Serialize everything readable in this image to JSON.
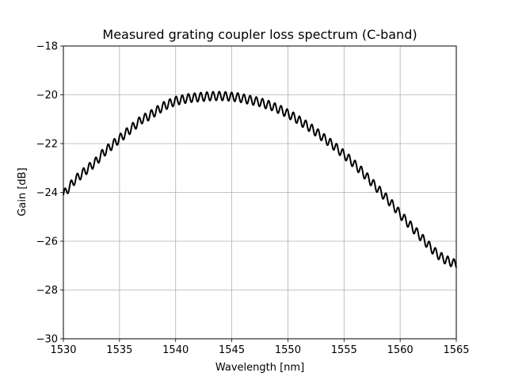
{
  "chart_data": {
    "type": "line",
    "title": "Measured grating coupler loss spectrum (C-band)",
    "xlabel": "Wavelength [nm]",
    "ylabel": "Gain [dB]",
    "xlim": [
      1530,
      1565
    ],
    "ylim": [
      -30,
      -18
    ],
    "xticks": [
      1530,
      1535,
      1540,
      1545,
      1550,
      1555,
      1560,
      1565
    ],
    "yticks": [
      -30,
      -28,
      -26,
      -24,
      -22,
      -20,
      -18
    ],
    "xtick_labels": [
      "1530",
      "1535",
      "1540",
      "1545",
      "1550",
      "1555",
      "1560",
      "1565"
    ],
    "ytick_labels": [
      "−30",
      "−28",
      "−26",
      "−24",
      "−22",
      "−20",
      "−18"
    ],
    "grid": true,
    "legend": false,
    "series": [
      {
        "color": "#000000",
        "x": [
          1530.0,
          1530.5,
          1531.0,
          1531.5,
          1532.0,
          1532.5,
          1533.0,
          1533.5,
          1534.0,
          1534.5,
          1535.0,
          1535.5,
          1536.0,
          1536.5,
          1537.0,
          1537.5,
          1538.0,
          1538.5,
          1539.0,
          1539.5,
          1540.0,
          1540.5,
          1541.0,
          1541.5,
          1542.0,
          1542.5,
          1543.0,
          1543.5,
          1544.0,
          1544.5,
          1545.0,
          1545.5,
          1546.0,
          1546.5,
          1547.0,
          1547.5,
          1548.0,
          1548.5,
          1549.0,
          1549.5,
          1550.0,
          1550.5,
          1551.0,
          1551.5,
          1552.0,
          1552.5,
          1553.0,
          1553.5,
          1554.0,
          1554.5,
          1555.0,
          1555.5,
          1556.0,
          1556.5,
          1557.0,
          1557.5,
          1558.0,
          1558.5,
          1559.0,
          1559.5,
          1560.0,
          1560.5,
          1561.0,
          1561.5,
          1562.0,
          1562.5,
          1563.0,
          1563.5,
          1564.0,
          1564.5,
          1565.0
        ],
        "values": [
          -24.1,
          -23.8,
          -23.5,
          -23.3,
          -23.1,
          -22.9,
          -22.7,
          -22.4,
          -22.2,
          -22.0,
          -21.8,
          -21.6,
          -21.4,
          -21.2,
          -21.0,
          -20.9,
          -20.75,
          -20.6,
          -20.45,
          -20.35,
          -20.25,
          -20.2,
          -20.15,
          -20.12,
          -20.1,
          -20.08,
          -20.06,
          -20.05,
          -20.05,
          -20.06,
          -20.08,
          -20.1,
          -20.15,
          -20.2,
          -20.25,
          -20.3,
          -20.38,
          -20.45,
          -20.55,
          -20.65,
          -20.78,
          -20.9,
          -21.05,
          -21.2,
          -21.35,
          -21.52,
          -21.7,
          -21.88,
          -22.05,
          -22.25,
          -22.45,
          -22.65,
          -22.88,
          -23.1,
          -23.35,
          -23.6,
          -23.85,
          -24.1,
          -24.35,
          -24.6,
          -24.9,
          -25.15,
          -25.4,
          -25.65,
          -25.9,
          -26.15,
          -26.4,
          -26.6,
          -26.75,
          -26.85,
          -26.95
        ],
        "ripple_amplitude_db": 0.18,
        "ripple_period_nm": 0.55
      }
    ]
  }
}
